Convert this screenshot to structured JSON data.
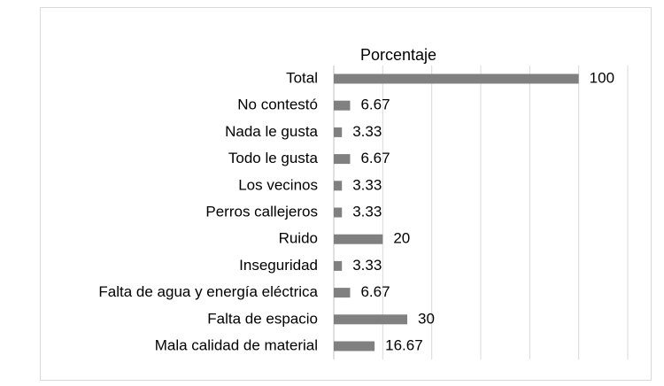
{
  "chart_data": {
    "type": "bar",
    "orientation": "horizontal",
    "title": "Porcentaje",
    "categories": [
      "Total",
      "No contestó",
      "Nada le gusta",
      "Todo le gusta",
      "Los vecinos",
      "Perros callejeros",
      "Ruido",
      "Inseguridad",
      "Falta de agua y energía eléctrica",
      "Falta de espacio",
      "Mala calidad de material"
    ],
    "values": [
      100,
      6.67,
      3.33,
      6.67,
      3.33,
      3.33,
      20,
      3.33,
      6.67,
      30,
      16.67
    ],
    "value_labels": [
      "100",
      "6.67",
      "3.33",
      "6.67",
      "3.33",
      "3.33",
      "20",
      "3.33",
      "6.67",
      "30",
      "16.67"
    ],
    "xlim": [
      0,
      120
    ],
    "grid": true,
    "bar_color": "#808080"
  }
}
